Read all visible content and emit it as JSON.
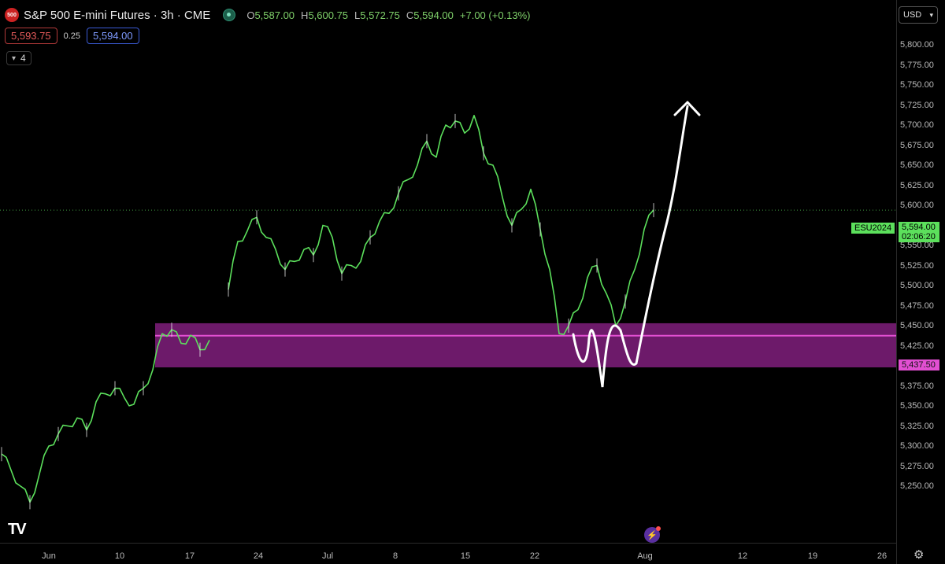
{
  "header": {
    "logo_text": "500",
    "title": "S&P 500 E-mini Futures · 3h · CME",
    "ohlc": {
      "o_key": "O",
      "o": "5,587.00",
      "h_key": "H",
      "h": "5,600.75",
      "l_key": "L",
      "l": "5,572.75",
      "c_key": "C",
      "c": "5,594.00",
      "change": "+7.00 (+0.13%)"
    }
  },
  "quotes": {
    "sell": "5,593.75",
    "spread": "0.25",
    "buy": "5,594.00"
  },
  "indicators": {
    "count": "4"
  },
  "currency": "USD",
  "price_axis": {
    "ticks": [
      "5,800.00",
      "5,775.00",
      "5,750.00",
      "5,725.00",
      "5,700.00",
      "5,675.00",
      "5,650.00",
      "5,625.00",
      "5,600.00",
      "5,575.00",
      "5,550.00",
      "5,525.00",
      "5,500.00",
      "5,475.00",
      "5,450.00",
      "5,425.00",
      "5,400.00",
      "5,375.00",
      "5,350.00",
      "5,325.00",
      "5,300.00",
      "5,275.00",
      "5,250.00"
    ],
    "current_price": "5,594.00",
    "countdown": "02:06:20",
    "zone_price": "5,437.50"
  },
  "symbol_label": "ESU2024",
  "time_axis": [
    "Jun",
    "10",
    "17",
    "24",
    "Jul",
    "8",
    "15",
    "22",
    "Aug",
    "12",
    "19",
    "26"
  ],
  "colors": {
    "up": "#5ce05c",
    "down": "#e6e6e6",
    "zone": "#6d1a6a",
    "zone_line": "#e24fd2",
    "drawing": "#ffffff"
  },
  "chart_data": {
    "type": "line",
    "series": [
      {
        "values": [
          5290,
          5270,
          5250,
          5230,
          5265,
          5300,
          5315,
          5325,
          5335,
          5320,
          5355,
          5365,
          5372,
          5360,
          5352,
          5372,
          5395,
          5440,
          5445,
          5428,
          5438,
          5420,
          5432,
          null,
          5495,
          5555,
          5568,
          5585,
          5560,
          5545,
          5520,
          5530,
          5545,
          5538,
          5575,
          5560,
          5515,
          5525,
          5530,
          5560,
          5580,
          5590,
          5615,
          5632,
          5650,
          5680,
          5660,
          5700,
          5705,
          5690,
          5712,
          5665,
          5650,
          5610,
          5575,
          5595,
          5620,
          5570,
          5520,
          5440,
          5450,
          5470,
          5510,
          5525,
          5490,
          5450,
          5480,
          5520,
          5570,
          5594
        ]
      }
    ],
    "ylim": [
      5240,
      5810
    ]
  },
  "aria": {
    "tv_logo": "TV",
    "bolt": "⚡",
    "gear": "⚙"
  }
}
